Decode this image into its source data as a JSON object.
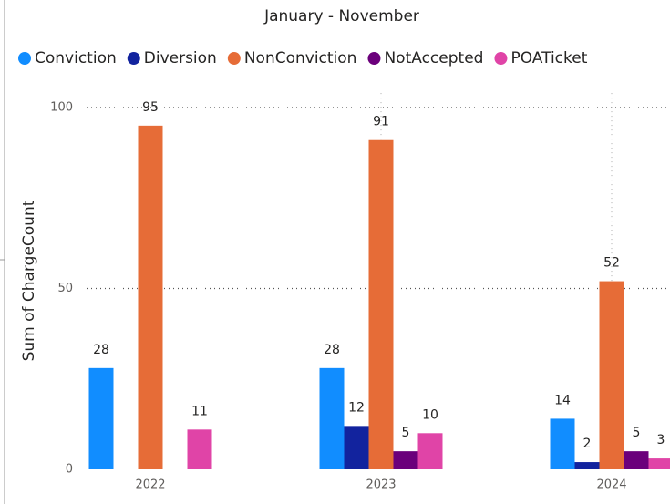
{
  "chart_data": {
    "type": "bar",
    "title": "January - November",
    "y_label": "Sum of ChargeCount",
    "categories": [
      "2022",
      "2023",
      "2024"
    ],
    "series": [
      {
        "name": "Conviction",
        "color": "#118dff",
        "values": [
          28,
          28,
          14
        ]
      },
      {
        "name": "Diversion",
        "color": "#12239e",
        "values": [
          null,
          12,
          2
        ]
      },
      {
        "name": "NonConviction",
        "color": "#e66c37",
        "values": [
          95,
          91,
          52
        ]
      },
      {
        "name": "NotAccepted",
        "color": "#6b007b",
        "values": [
          null,
          5,
          5
        ]
      },
      {
        "name": "POATicket",
        "color": "#e044a7",
        "values": [
          11,
          10,
          3
        ]
      }
    ],
    "ylim": [
      0,
      104
    ],
    "yticks": [
      0,
      50,
      100
    ],
    "grid": true
  }
}
